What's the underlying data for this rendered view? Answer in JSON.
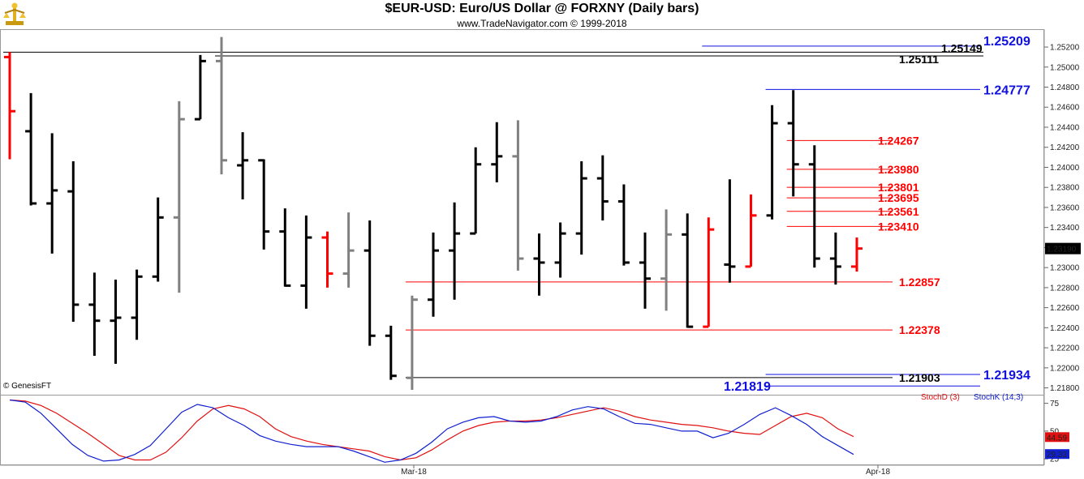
{
  "header": {
    "title": "$EUR-USD:  Euro/US Dollar @ FORXNY  (Daily bars)",
    "subtitle": "www.TradeNavigator.com © 1999-2018"
  },
  "watermark": "© GenesisFT",
  "colors": {
    "up": "#ff0000",
    "down": "#000000",
    "neutral": "#808080",
    "red_level": "#ff0000",
    "blue_level": "#1010e0",
    "black_level": "#000000",
    "stoch_d": "#e01010",
    "stoch_k": "#1020d0",
    "last_price_box": "#000000"
  },
  "chart_data": [
    {
      "type": "ohlc",
      "y_axis": {
        "ticks": [
          "1.25200",
          "1.25000",
          "1.24800",
          "1.24600",
          "1.24400",
          "1.24200",
          "1.24000",
          "1.23800",
          "1.23600",
          "1.23400",
          "1.23200",
          "1.23000",
          "1.22800",
          "1.22600",
          "1.22400",
          "1.22200",
          "1.22000",
          "1.21800"
        ],
        "range": [
          1.2174,
          1.2537
        ]
      },
      "x_axis": {
        "labels": [
          "Mar-18",
          "Apr-18"
        ]
      },
      "last_price_label": "1.23190",
      "bars": [
        {
          "o": 1.251,
          "h": 1.2515,
          "l": 1.2408,
          "c": 1.2456,
          "color": "red"
        },
        {
          "o": 1.2436,
          "h": 1.2474,
          "l": 1.2362,
          "c": 1.2364,
          "color": "black"
        },
        {
          "o": 1.2364,
          "h": 1.2434,
          "l": 1.2314,
          "c": 1.2377,
          "color": "black"
        },
        {
          "o": 1.2376,
          "h": 1.2406,
          "l": 1.2246,
          "c": 1.2263,
          "color": "black"
        },
        {
          "o": 1.2263,
          "h": 1.2295,
          "l": 1.2212,
          "c": 1.2247,
          "color": "black"
        },
        {
          "o": 1.2247,
          "h": 1.2288,
          "l": 1.2204,
          "c": 1.225,
          "color": "black"
        },
        {
          "o": 1.225,
          "h": 1.2298,
          "l": 1.2228,
          "c": 1.2291,
          "color": "black"
        },
        {
          "o": 1.2291,
          "h": 1.237,
          "l": 1.2286,
          "c": 1.235,
          "color": "black"
        },
        {
          "o": 1.235,
          "h": 1.2466,
          "l": 1.2275,
          "c": 1.2448,
          "color": "gray"
        },
        {
          "o": 1.2448,
          "h": 1.2512,
          "l": 1.2448,
          "c": 1.2506,
          "color": "black"
        },
        {
          "o": 1.2506,
          "h": 1.253,
          "l": 1.2393,
          "c": 1.2407,
          "color": "gray"
        },
        {
          "o": 1.2402,
          "h": 1.2435,
          "l": 1.2368,
          "c": 1.2407,
          "color": "black"
        },
        {
          "o": 1.2407,
          "h": 1.2408,
          "l": 1.2318,
          "c": 1.2336,
          "color": "black"
        },
        {
          "o": 1.2336,
          "h": 1.2359,
          "l": 1.2281,
          "c": 1.2282,
          "color": "black"
        },
        {
          "o": 1.2282,
          "h": 1.2352,
          "l": 1.2259,
          "c": 1.233,
          "color": "black"
        },
        {
          "o": 1.233,
          "h": 1.2336,
          "l": 1.228,
          "c": 1.2294,
          "color": "red"
        },
        {
          "o": 1.2294,
          "h": 1.2355,
          "l": 1.228,
          "c": 1.2317,
          "color": "gray"
        },
        {
          "o": 1.2317,
          "h": 1.2347,
          "l": 1.2222,
          "c": 1.2232,
          "color": "black"
        },
        {
          "o": 1.2232,
          "h": 1.2242,
          "l": 1.2188,
          "c": 1.2192,
          "color": "black"
        },
        {
          "o": 1.219,
          "h": 1.2272,
          "l": 1.2178,
          "c": 1.2268,
          "color": "gray"
        },
        {
          "o": 1.2268,
          "h": 1.2335,
          "l": 1.2251,
          "c": 1.2317,
          "color": "black"
        },
        {
          "o": 1.2317,
          "h": 1.2365,
          "l": 1.2268,
          "c": 1.2334,
          "color": "black"
        },
        {
          "o": 1.2334,
          "h": 1.242,
          "l": 1.2334,
          "c": 1.2403,
          "color": "black"
        },
        {
          "o": 1.2403,
          "h": 1.2445,
          "l": 1.2385,
          "c": 1.2411,
          "color": "black"
        },
        {
          "o": 1.2411,
          "h": 1.2447,
          "l": 1.2297,
          "c": 1.2309,
          "color": "gray"
        },
        {
          "o": 1.2309,
          "h": 1.2334,
          "l": 1.2272,
          "c": 1.2305,
          "color": "black"
        },
        {
          "o": 1.2305,
          "h": 1.2345,
          "l": 1.229,
          "c": 1.2334,
          "color": "black"
        },
        {
          "o": 1.2334,
          "h": 1.2406,
          "l": 1.2313,
          "c": 1.2389,
          "color": "black"
        },
        {
          "o": 1.2389,
          "h": 1.2412,
          "l": 1.2347,
          "c": 1.2366,
          "color": "black"
        },
        {
          "o": 1.2366,
          "h": 1.2383,
          "l": 1.2302,
          "c": 1.2305,
          "color": "black"
        },
        {
          "o": 1.2305,
          "h": 1.2335,
          "l": 1.2259,
          "c": 1.2289,
          "color": "black"
        },
        {
          "o": 1.2289,
          "h": 1.2358,
          "l": 1.2257,
          "c": 1.2333,
          "color": "gray"
        },
        {
          "o": 1.2333,
          "h": 1.2354,
          "l": 1.224,
          "c": 1.2241,
          "color": "black"
        },
        {
          "o": 1.2241,
          "h": 1.235,
          "l": 1.2241,
          "c": 1.2338,
          "color": "red"
        },
        {
          "o": 1.2303,
          "h": 1.2388,
          "l": 1.2285,
          "c": 1.2301,
          "color": "black"
        },
        {
          "o": 1.2301,
          "h": 1.2373,
          "l": 1.2301,
          "c": 1.2352,
          "color": "red"
        },
        {
          "o": 1.2352,
          "h": 1.2462,
          "l": 1.2348,
          "c": 1.2444,
          "color": "black"
        },
        {
          "o": 1.2444,
          "h": 1.2477,
          "l": 1.2371,
          "c": 1.2403,
          "color": "black"
        },
        {
          "o": 1.2403,
          "h": 1.2422,
          "l": 1.23,
          "c": 1.2309,
          "color": "black"
        },
        {
          "o": 1.2309,
          "h": 1.2335,
          "l": 1.2283,
          "c": 1.2301,
          "color": "black"
        },
        {
          "o": 1.2301,
          "h": 1.233,
          "l": 1.2296,
          "c": 1.2319,
          "color": "red"
        }
      ],
      "levels": [
        {
          "value": 1.25209,
          "label": "1.25209",
          "color": "blue",
          "x_from_bar": 33
        },
        {
          "value": 1.25149,
          "label": "1.25149",
          "color": "black",
          "x_from_bar": 0
        },
        {
          "value": 1.25111,
          "label": "1.25111",
          "color": "black",
          "x_from_bar": 10
        },
        {
          "value": 1.24777,
          "label": "1.24777",
          "color": "blue",
          "x_from_bar": 36
        },
        {
          "value": 1.24267,
          "label": "1.24267",
          "color": "red",
          "x_from_bar": 37
        },
        {
          "value": 1.2398,
          "label": "1.23980",
          "color": "red",
          "x_from_bar": 37
        },
        {
          "value": 1.23801,
          "label": "1.23801",
          "color": "red",
          "x_from_bar": 37
        },
        {
          "value": 1.23695,
          "label": "1.23695",
          "color": "red",
          "x_from_bar": 37
        },
        {
          "value": 1.23561,
          "label": "1.23561",
          "color": "red",
          "x_from_bar": 37
        },
        {
          "value": 1.2341,
          "label": "1.23410",
          "color": "red",
          "x_from_bar": 37
        },
        {
          "value": 1.22857,
          "label": "1.22857",
          "color": "red",
          "x_from_bar": 19
        },
        {
          "value": 1.22378,
          "label": "1.22378",
          "color": "red",
          "x_from_bar": 19
        },
        {
          "value": 1.21934,
          "label": "1.21934",
          "color": "blue",
          "x_from_bar": 36
        },
        {
          "value": 1.21903,
          "label": "1.21903",
          "color": "black",
          "x_from_bar": 19
        },
        {
          "value": 1.21819,
          "label": "1.21819",
          "color": "blue",
          "x_from_bar": 36
        }
      ]
    },
    {
      "type": "line",
      "indicator_labels": [
        "StochD (3)",
        "StochK (14,3)"
      ],
      "y_axis": {
        "ticks": [
          "75",
          "50",
          "25"
        ],
        "range": [
          20,
          82
        ]
      },
      "last_labels": {
        "stoch_d": "44.59",
        "stoch_k": "29.33"
      },
      "series": [
        {
          "name": "StochD (3)",
          "values": [
            78,
            77,
            73,
            66,
            57,
            48,
            38,
            28,
            24,
            24,
            31,
            44,
            59,
            70,
            73,
            70,
            63,
            52,
            45,
            41,
            38,
            36,
            34,
            32,
            27,
            24,
            26,
            33,
            42,
            50,
            55,
            58,
            59,
            59,
            60,
            62,
            65,
            68,
            71,
            68,
            63,
            60,
            58,
            56,
            55,
            53,
            50,
            48,
            47,
            55,
            63,
            66,
            62,
            52,
            45
          ]
        },
        {
          "name": "StochK (14,3)",
          "values": [
            78,
            76,
            66,
            52,
            38,
            28,
            23,
            24,
            29,
            37,
            52,
            67,
            74,
            71,
            62,
            55,
            46,
            41,
            38,
            36,
            36,
            36,
            32,
            27,
            22,
            24,
            30,
            40,
            52,
            58,
            62,
            63,
            59,
            58,
            59,
            63,
            69,
            72,
            70,
            63,
            57,
            56,
            53,
            50,
            50,
            44,
            48,
            56,
            65,
            71,
            64,
            56,
            45,
            37,
            29
          ]
        }
      ]
    }
  ]
}
